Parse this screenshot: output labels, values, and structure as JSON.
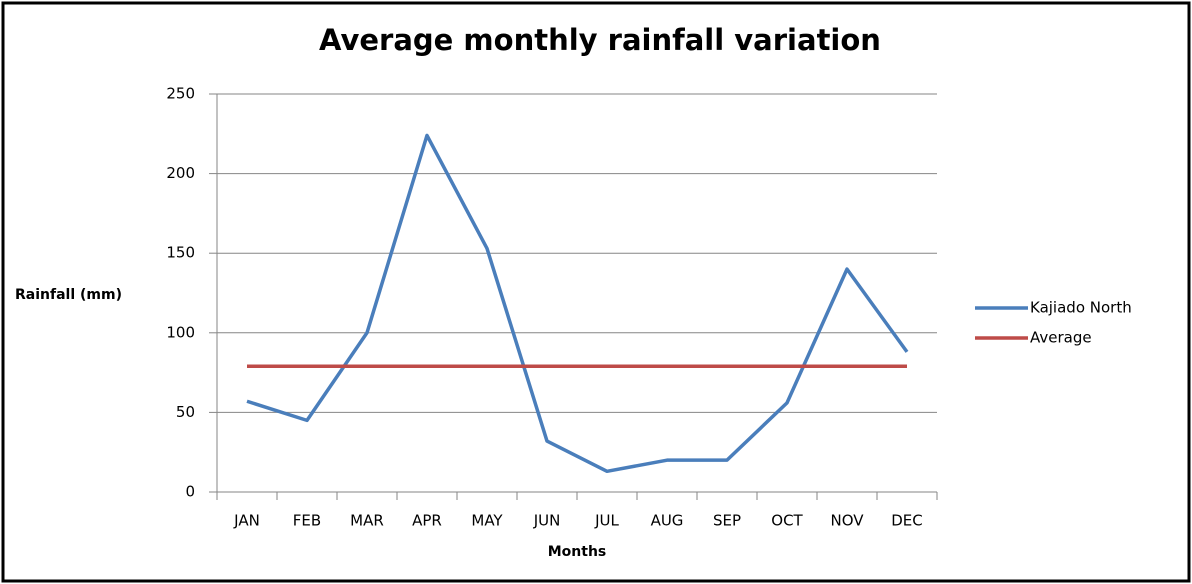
{
  "chart_data": {
    "type": "line",
    "title": "Average monthly rainfall variation",
    "y_label": "Rainfall (mm)",
    "x_label": "Months",
    "categories": [
      "JAN",
      "FEB",
      "MAR",
      "APR",
      "MAY",
      "JUN",
      "JUL",
      "AUG",
      "SEP",
      "OCT",
      "NOV",
      "DEC"
    ],
    "series": [
      {
        "name": "Kajiado North",
        "color": "#4a7ebb",
        "values": [
          57,
          45,
          100,
          224,
          153,
          32,
          13,
          20,
          20,
          56,
          140,
          88
        ]
      },
      {
        "name": "Average",
        "color": "#be4b48",
        "values": [
          79,
          79,
          79,
          79,
          79,
          79,
          79,
          79,
          79,
          79,
          79,
          79
        ]
      }
    ],
    "ylim": [
      0,
      250
    ],
    "yticks": [
      0,
      50,
      100,
      150,
      200,
      250
    ],
    "grid": true,
    "legend": "right"
  }
}
